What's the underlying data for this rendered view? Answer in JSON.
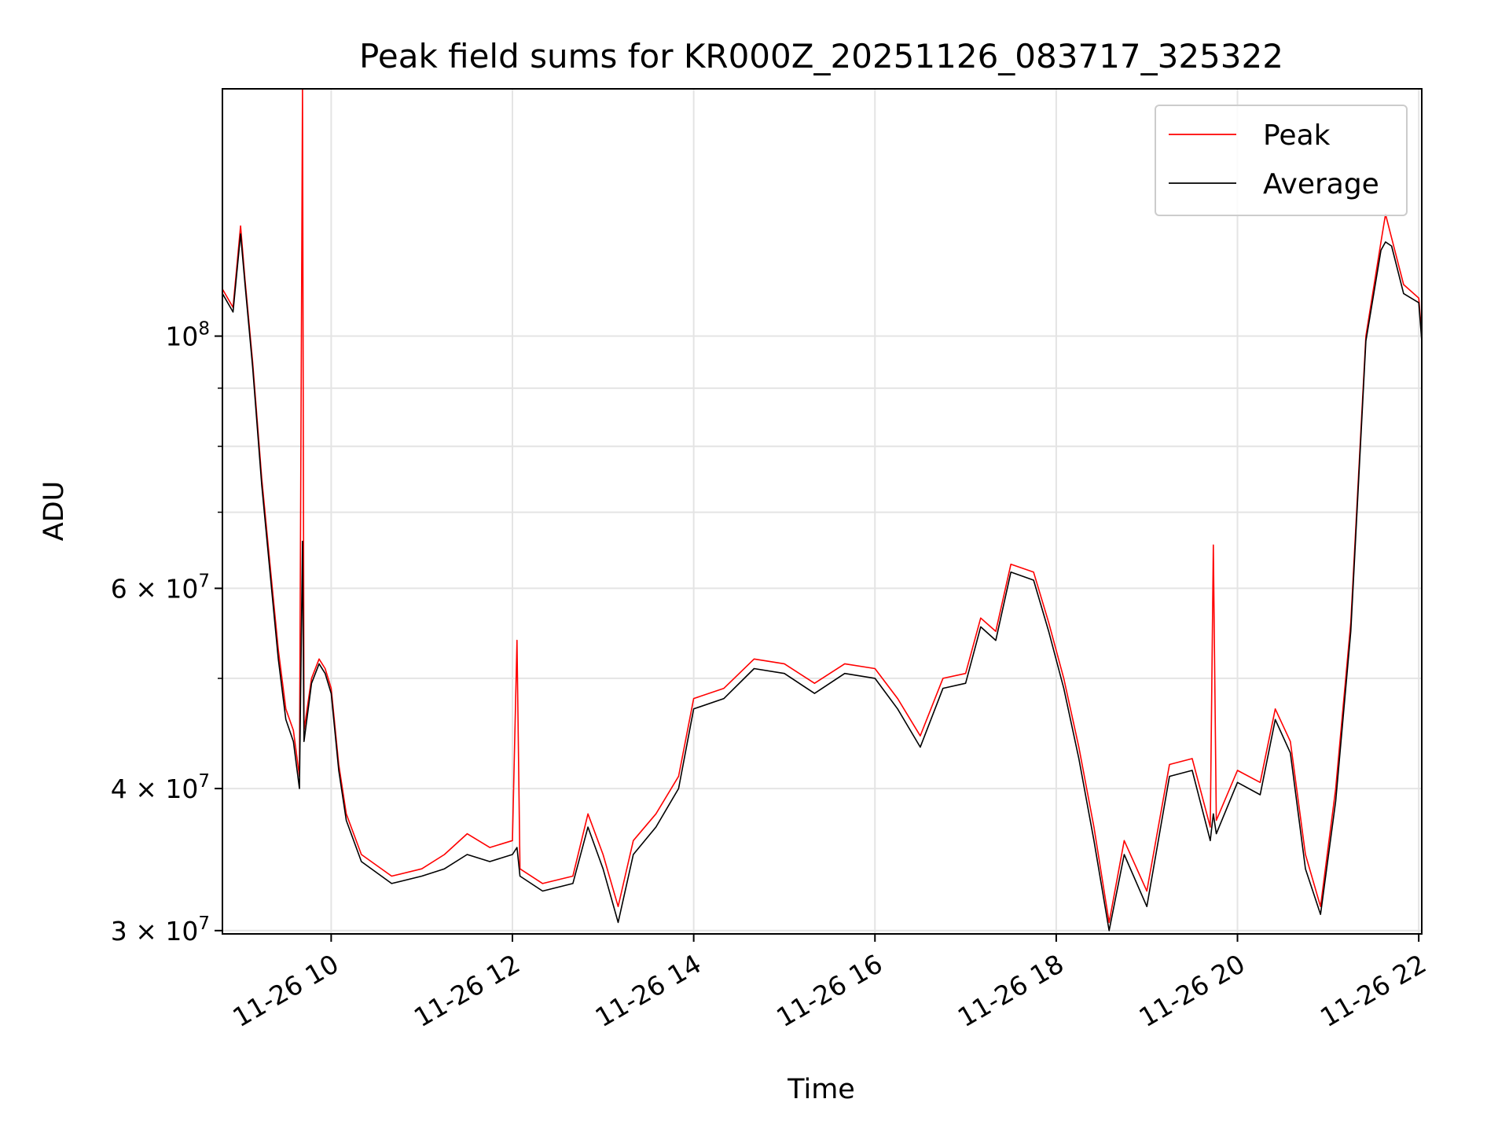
{
  "chart_data": {
    "type": "line",
    "title": "Peak field sums for KR000Z_20251126_083717_325322",
    "xlabel": "Time",
    "ylabel": "ADU",
    "y_scale": "log",
    "xlim": [
      "2025-11-26 08:48",
      "2025-11-26 22:02"
    ],
    "ylim": [
      29800000,
      165000000
    ],
    "x_ticks": [
      "11-26 10",
      "11-26 12",
      "11-26 14",
      "11-26 16",
      "11-26 18",
      "11-26 20",
      "11-26 22"
    ],
    "x_tick_times": [
      "2025-11-26 10:00",
      "2025-11-26 12:00",
      "2025-11-26 14:00",
      "2025-11-26 16:00",
      "2025-11-26 18:00",
      "2025-11-26 20:00",
      "2025-11-26 22:00"
    ],
    "y_ticks": [
      {
        "value": 100000000,
        "base": "10",
        "exp": "8"
      },
      {
        "value": 60000000,
        "base": "6 × 10",
        "exp": "7"
      },
      {
        "value": 40000000,
        "base": "4 × 10",
        "exp": "7"
      },
      {
        "value": 30000000,
        "base": "3 × 10",
        "exp": "7"
      }
    ],
    "grid": true,
    "legend_position": "top-right",
    "colors": {
      "Peak": "#ff0000",
      "Average": "#000000"
    },
    "series": [
      {
        "name": "Peak",
        "color": "#ff0000",
        "points": [
          [
            "2025-11-26 08:48",
            110000000
          ],
          [
            "2025-11-26 08:55",
            106000000
          ],
          [
            "2025-11-26 09:00",
            125000000
          ],
          [
            "2025-11-26 09:03",
            112000000
          ],
          [
            "2025-11-26 09:08",
            95000000
          ],
          [
            "2025-11-26 09:14",
            75000000
          ],
          [
            "2025-11-26 09:20",
            62000000
          ],
          [
            "2025-11-26 09:25",
            53000000
          ],
          [
            "2025-11-26 09:30",
            47000000
          ],
          [
            "2025-11-26 09:35",
            45000000
          ],
          [
            "2025-11-26 09:39",
            41000000
          ],
          [
            "2025-11-26 09:41",
            165000000
          ],
          [
            "2025-11-26 09:42",
            45000000
          ],
          [
            "2025-11-26 09:47",
            50000000
          ],
          [
            "2025-11-26 09:52",
            52000000
          ],
          [
            "2025-11-26 09:56",
            51000000
          ],
          [
            "2025-11-26 10:00",
            49000000
          ],
          [
            "2025-11-26 10:05",
            42000000
          ],
          [
            "2025-11-26 10:10",
            38000000
          ],
          [
            "2025-11-26 10:20",
            35000000
          ],
          [
            "2025-11-26 10:40",
            33500000
          ],
          [
            "2025-11-26 11:00",
            34000000
          ],
          [
            "2025-11-26 11:15",
            35000000
          ],
          [
            "2025-11-26 11:30",
            36500000
          ],
          [
            "2025-11-26 11:45",
            35500000
          ],
          [
            "2025-11-26 12:00",
            36000000
          ],
          [
            "2025-11-26 12:03",
            54000000
          ],
          [
            "2025-11-26 12:05",
            34000000
          ],
          [
            "2025-11-26 12:20",
            33000000
          ],
          [
            "2025-11-26 12:40",
            33500000
          ],
          [
            "2025-11-26 12:50",
            38000000
          ],
          [
            "2025-11-26 13:00",
            35000000
          ],
          [
            "2025-11-26 13:10",
            31500000
          ],
          [
            "2025-11-26 13:20",
            36000000
          ],
          [
            "2025-11-26 13:35",
            38000000
          ],
          [
            "2025-11-26 13:50",
            41000000
          ],
          [
            "2025-11-26 14:00",
            48000000
          ],
          [
            "2025-11-26 14:20",
            49000000
          ],
          [
            "2025-11-26 14:40",
            52000000
          ],
          [
            "2025-11-26 15:00",
            51500000
          ],
          [
            "2025-11-26 15:20",
            49500000
          ],
          [
            "2025-11-26 15:40",
            51500000
          ],
          [
            "2025-11-26 16:00",
            51000000
          ],
          [
            "2025-11-26 16:15",
            48000000
          ],
          [
            "2025-11-26 16:30",
            44500000
          ],
          [
            "2025-11-26 16:45",
            50000000
          ],
          [
            "2025-11-26 17:00",
            50500000
          ],
          [
            "2025-11-26 17:10",
            56500000
          ],
          [
            "2025-11-26 17:20",
            55000000
          ],
          [
            "2025-11-26 17:30",
            63000000
          ],
          [
            "2025-11-26 17:45",
            62000000
          ],
          [
            "2025-11-26 17:55",
            56000000
          ],
          [
            "2025-11-26 18:05",
            50000000
          ],
          [
            "2025-11-26 18:15",
            43500000
          ],
          [
            "2025-11-26 18:25",
            37000000
          ],
          [
            "2025-11-26 18:35",
            30500000
          ],
          [
            "2025-11-26 18:45",
            36000000
          ],
          [
            "2025-11-26 19:00",
            32500000
          ],
          [
            "2025-11-26 19:15",
            42000000
          ],
          [
            "2025-11-26 19:30",
            42500000
          ],
          [
            "2025-11-26 19:42",
            37000000
          ],
          [
            "2025-11-26 19:44",
            65500000
          ],
          [
            "2025-11-26 19:46",
            37500000
          ],
          [
            "2025-11-26 20:00",
            41500000
          ],
          [
            "2025-11-26 20:15",
            40500000
          ],
          [
            "2025-11-26 20:25",
            47000000
          ],
          [
            "2025-11-26 20:35",
            44000000
          ],
          [
            "2025-11-26 20:45",
            35000000
          ],
          [
            "2025-11-26 20:55",
            31500000
          ],
          [
            "2025-11-26 21:05",
            40000000
          ],
          [
            "2025-11-26 21:15",
            56000000
          ],
          [
            "2025-11-26 21:25",
            100000000
          ],
          [
            "2025-11-26 21:35",
            121000000
          ],
          [
            "2025-11-26 21:38",
            128000000
          ],
          [
            "2025-11-26 21:42",
            122000000
          ],
          [
            "2025-11-26 21:50",
            111000000
          ],
          [
            "2025-11-26 22:00",
            108000000
          ],
          [
            "2025-11-26 22:02",
            100000000
          ]
        ]
      },
      {
        "name": "Average",
        "color": "#000000",
        "points": [
          [
            "2025-11-26 08:48",
            109000000
          ],
          [
            "2025-11-26 08:55",
            105000000
          ],
          [
            "2025-11-26 09:00",
            123000000
          ],
          [
            "2025-11-26 09:03",
            111000000
          ],
          [
            "2025-11-26 09:08",
            94000000
          ],
          [
            "2025-11-26 09:14",
            74000000
          ],
          [
            "2025-11-26 09:20",
            61000000
          ],
          [
            "2025-11-26 09:25",
            52000000
          ],
          [
            "2025-11-26 09:30",
            46000000
          ],
          [
            "2025-11-26 09:35",
            44000000
          ],
          [
            "2025-11-26 09:39",
            40000000
          ],
          [
            "2025-11-26 09:41",
            66000000
          ],
          [
            "2025-11-26 09:42",
            44000000
          ],
          [
            "2025-11-26 09:47",
            49500000
          ],
          [
            "2025-11-26 09:52",
            51500000
          ],
          [
            "2025-11-26 09:56",
            50500000
          ],
          [
            "2025-11-26 10:00",
            48500000
          ],
          [
            "2025-11-26 10:05",
            41500000
          ],
          [
            "2025-11-26 10:10",
            37500000
          ],
          [
            "2025-11-26 10:20",
            34500000
          ],
          [
            "2025-11-26 10:40",
            33000000
          ],
          [
            "2025-11-26 11:00",
            33500000
          ],
          [
            "2025-11-26 11:15",
            34000000
          ],
          [
            "2025-11-26 11:30",
            35000000
          ],
          [
            "2025-11-26 11:45",
            34500000
          ],
          [
            "2025-11-26 12:00",
            35000000
          ],
          [
            "2025-11-26 12:03",
            35500000
          ],
          [
            "2025-11-26 12:05",
            33500000
          ],
          [
            "2025-11-26 12:20",
            32500000
          ],
          [
            "2025-11-26 12:40",
            33000000
          ],
          [
            "2025-11-26 12:50",
            37000000
          ],
          [
            "2025-11-26 13:00",
            34000000
          ],
          [
            "2025-11-26 13:10",
            30500000
          ],
          [
            "2025-11-26 13:20",
            35000000
          ],
          [
            "2025-11-26 13:35",
            37000000
          ],
          [
            "2025-11-26 13:50",
            40000000
          ],
          [
            "2025-11-26 14:00",
            47000000
          ],
          [
            "2025-11-26 14:20",
            48000000
          ],
          [
            "2025-11-26 14:40",
            51000000
          ],
          [
            "2025-11-26 15:00",
            50500000
          ],
          [
            "2025-11-26 15:20",
            48500000
          ],
          [
            "2025-11-26 15:40",
            50500000
          ],
          [
            "2025-11-26 16:00",
            50000000
          ],
          [
            "2025-11-26 16:15",
            47000000
          ],
          [
            "2025-11-26 16:30",
            43500000
          ],
          [
            "2025-11-26 16:45",
            49000000
          ],
          [
            "2025-11-26 17:00",
            49500000
          ],
          [
            "2025-11-26 17:10",
            55500000
          ],
          [
            "2025-11-26 17:20",
            54000000
          ],
          [
            "2025-11-26 17:30",
            62000000
          ],
          [
            "2025-11-26 17:45",
            61000000
          ],
          [
            "2025-11-26 17:55",
            55000000
          ],
          [
            "2025-11-26 18:05",
            49000000
          ],
          [
            "2025-11-26 18:15",
            42500000
          ],
          [
            "2025-11-26 18:25",
            36000000
          ],
          [
            "2025-11-26 18:35",
            30000000
          ],
          [
            "2025-11-26 18:45",
            35000000
          ],
          [
            "2025-11-26 19:00",
            31500000
          ],
          [
            "2025-11-26 19:15",
            41000000
          ],
          [
            "2025-11-26 19:30",
            41500000
          ],
          [
            "2025-11-26 19:42",
            36000000
          ],
          [
            "2025-11-26 19:44",
            38000000
          ],
          [
            "2025-11-26 19:46",
            36500000
          ],
          [
            "2025-11-26 20:00",
            40500000
          ],
          [
            "2025-11-26 20:15",
            39500000
          ],
          [
            "2025-11-26 20:25",
            46000000
          ],
          [
            "2025-11-26 20:35",
            43000000
          ],
          [
            "2025-11-26 20:45",
            34000000
          ],
          [
            "2025-11-26 20:55",
            31000000
          ],
          [
            "2025-11-26 21:05",
            39000000
          ],
          [
            "2025-11-26 21:15",
            55000000
          ],
          [
            "2025-11-26 21:25",
            99000000
          ],
          [
            "2025-11-26 21:35",
            119000000
          ],
          [
            "2025-11-26 21:38",
            121000000
          ],
          [
            "2025-11-26 21:42",
            120000000
          ],
          [
            "2025-11-26 21:50",
            109000000
          ],
          [
            "2025-11-26 22:00",
            107000000
          ],
          [
            "2025-11-26 22:02",
            99000000
          ]
        ]
      }
    ]
  }
}
